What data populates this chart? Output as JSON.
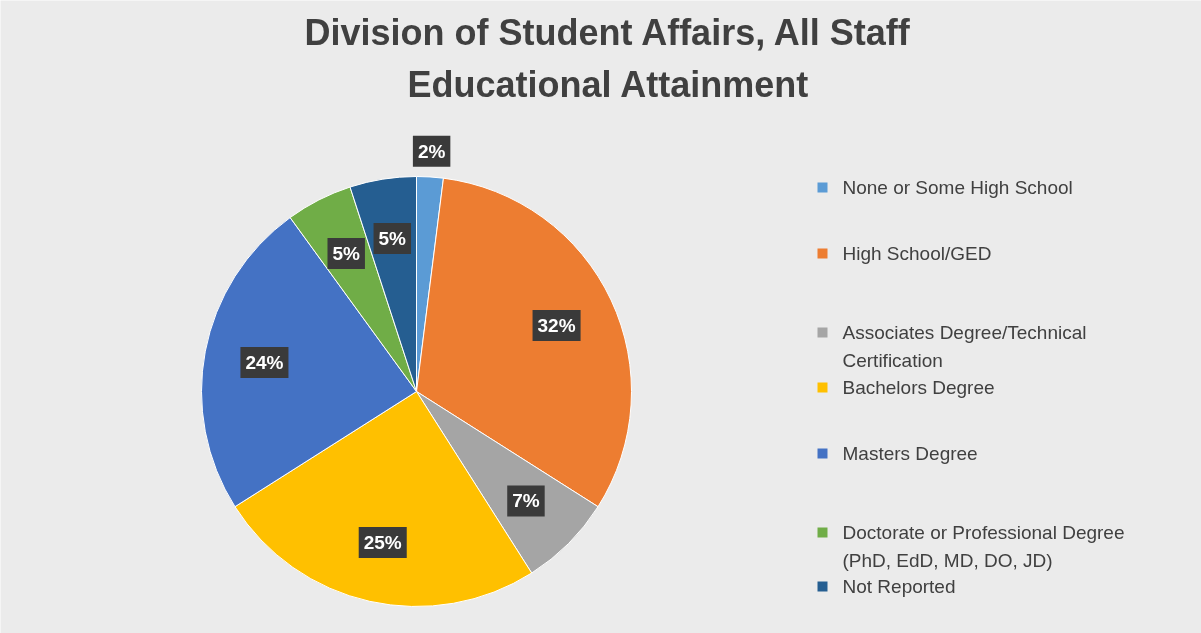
{
  "chart_data": {
    "type": "pie",
    "title": "Division of Student Affairs, All Staff Educational Attainment",
    "categories": [
      "None or Some High School",
      "High School/GED",
      "Associates Degree/Technical Certification",
      "Bachelors Degree",
      "Masters Degree",
      "Doctorate or Professional Degree (PhD, EdD, MD, DO, JD)",
      "Not Reported"
    ],
    "values": [
      2,
      32,
      7,
      25,
      24,
      5,
      5
    ],
    "value_labels": [
      "2%",
      "32%",
      "7%",
      "25%",
      "24%",
      "5%",
      "5%"
    ],
    "colors": [
      "#5b9bd5",
      "#ed7d31",
      "#a5a5a5",
      "#ffc000",
      "#4472c4",
      "#70ad47",
      "#255e91"
    ],
    "legend": "right"
  }
}
